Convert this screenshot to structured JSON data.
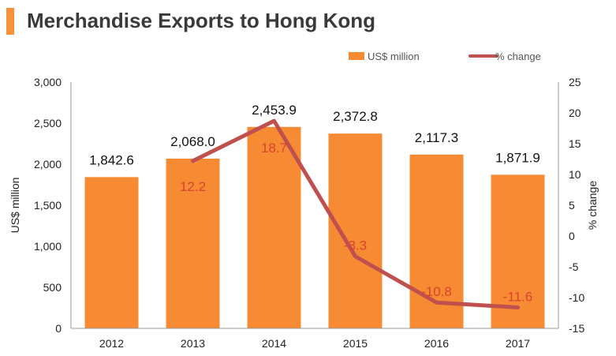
{
  "page": {
    "title": "Merchandise Exports to Hong Kong",
    "accent_color": "#f7923a"
  },
  "chart_data": {
    "type": "bar",
    "categories": [
      "2012",
      "2013",
      "2014",
      "2015",
      "2016",
      "2017"
    ],
    "series": [
      {
        "name": "US$ million",
        "type": "bar",
        "axis": "left",
        "color": "#f68b33",
        "values": [
          1842.6,
          2068.0,
          2453.9,
          2372.8,
          2117.3,
          1871.9
        ],
        "labels": [
          "1,842.6",
          "2,068.0",
          "2,453.9",
          "2,372.8",
          "2,117.3",
          "1,871.9"
        ]
      },
      {
        "name": "% change",
        "type": "line",
        "axis": "right",
        "color": "#c0504d",
        "values": [
          null,
          12.2,
          18.7,
          -3.3,
          -10.8,
          -11.6
        ],
        "labels": [
          "",
          "12.2",
          "18.7",
          "-3.3",
          "-10.8",
          "-11.6"
        ]
      }
    ],
    "ylabel": "US$ million",
    "y2label": "% change",
    "ylim": [
      0,
      3000
    ],
    "y2lim": [
      -15,
      25
    ],
    "yticks": [
      "0",
      "500",
      "1,000",
      "1,500",
      "2,000",
      "2,500",
      "3,000"
    ],
    "y2ticks": [
      "-15",
      "-10",
      "-5",
      "0",
      "5",
      "10",
      "15",
      "20",
      "25"
    ],
    "grid": false,
    "legend_position": "top-right"
  }
}
